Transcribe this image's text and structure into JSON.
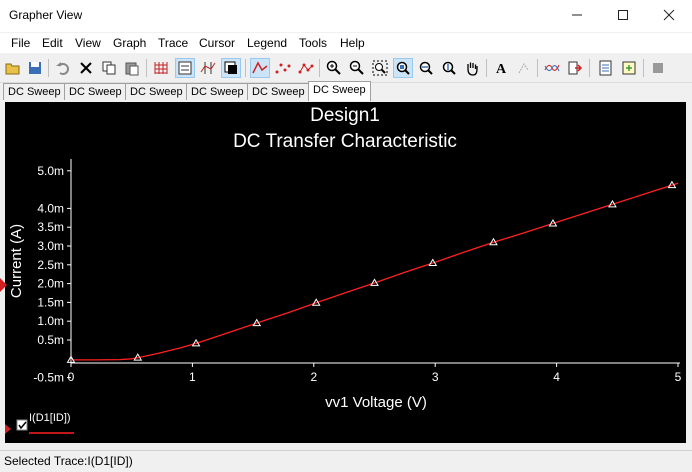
{
  "window": {
    "title": "Grapher View"
  },
  "menu": [
    "File",
    "Edit",
    "View",
    "Graph",
    "Trace",
    "Cursor",
    "Legend",
    "Tools",
    "Help"
  ],
  "tabs": [
    "DC Sweep",
    "DC Sweep",
    "DC Sweep",
    "DC Sweep",
    "DC Sweep",
    "DC Sweep"
  ],
  "active_tab_index": 5,
  "legend": {
    "label": "I(D1[ID])",
    "checked": true,
    "color": "#ff2020"
  },
  "status": {
    "text": "Selected Trace:I(D1[ID])"
  },
  "colors": {
    "trace": "#ff2020",
    "background": "#000000",
    "axis": "#ffffff"
  },
  "chart_data": {
    "type": "line",
    "title": "Design1",
    "subtitle": "DC Transfer Characteristic",
    "xlabel": "vv1 Voltage (V)",
    "ylabel": "Current (A)",
    "xlim": [
      0,
      5
    ],
    "ylim": [
      -0.0007,
      0.0052
    ],
    "x_ticks": [
      "0",
      "1",
      "2",
      "3",
      "4",
      "5"
    ],
    "y_ticks": [
      "-0.5m",
      "0.5m",
      "1.0m",
      "1.5m",
      "2.0m",
      "2.5m",
      "3.0m",
      "3.5m",
      "4.0m",
      "5.0m"
    ],
    "grid": false,
    "legend_position": "bottom-left",
    "series": [
      {
        "name": "I(D1[ID])",
        "x": [
          0,
          0.2,
          0.4,
          0.5,
          0.55,
          0.7,
          0.9,
          1.05,
          1.3,
          1.55,
          1.8,
          2.02,
          2.3,
          2.52,
          2.75,
          3.0,
          3.25,
          3.5,
          3.75,
          4.0,
          4.25,
          4.5,
          4.75,
          5.0
        ],
        "y": [
          -3e-05,
          -3e-05,
          -2e-05,
          0.0,
          3e-05,
          0.00013,
          0.00029,
          0.00043,
          0.0007,
          0.00097,
          0.00124,
          0.00149,
          0.0018,
          0.00204,
          0.0023,
          0.00257,
          0.00285,
          0.00312,
          0.00337,
          0.00363,
          0.00389,
          0.00415,
          0.00441,
          0.00467
        ]
      }
    ],
    "markers_x": [
      0,
      0.55,
      1.03,
      1.53,
      2.02,
      2.5,
      2.98,
      3.48,
      3.97,
      4.46,
      4.95
    ]
  }
}
